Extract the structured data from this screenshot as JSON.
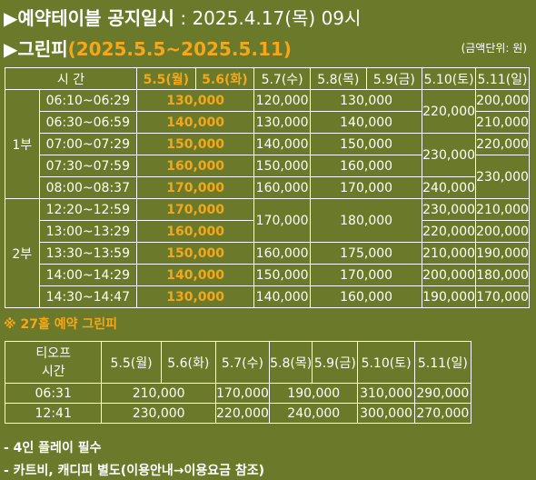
{
  "header": {
    "title_prefix": "▶",
    "title": "예약테이블 공지일시",
    "colon": ":",
    "datetime": "2025.4.17(목) 09시"
  },
  "subheader": {
    "prefix": "▶",
    "title": "그린피",
    "range": "(2025.5.5~2025.5.11)",
    "unit": "(금액단위: 원)"
  },
  "green_fee": {
    "time_header": "시 간",
    "days": [
      "5.5(월)",
      "5.6(화)",
      "5.7(수)",
      "5.8(목)",
      "5.9(금)",
      "5.10(토)",
      "5.11(일)"
    ],
    "part1": "1부",
    "part2": "2부",
    "times": [
      "06:10~06:29",
      "06:30~06:59",
      "07:00~07:29",
      "07:30~07:59",
      "08:00~08:37",
      "12:20~12:59",
      "13:00~13:29",
      "13:30~13:59",
      "14:00~14:29",
      "14:30~14:47"
    ],
    "holiday_prices": [
      [
        "130,000",
        "130,000"
      ],
      [
        "140,000",
        "140,000"
      ],
      [
        "150,000",
        "150,000"
      ],
      [
        "160,000",
        "160,000"
      ],
      [
        "170,000",
        "170,000"
      ],
      [
        "170,000",
        "170,000"
      ],
      [
        "160,000",
        "160,000"
      ],
      [
        "150,000",
        "150,000"
      ],
      [
        "140,000",
        "140,000"
      ],
      [
        "130,000",
        "130,000"
      ]
    ],
    "col57": [
      "120,000",
      "130,000",
      "140,000",
      "150,000",
      "160,000",
      "170,000",
      "160,000",
      "150,000",
      "140,000"
    ],
    "col5859": [
      "130,000",
      "140,000",
      "150,000",
      "160,000",
      "170,000",
      "180,000",
      "175,000",
      "170,000",
      "160,000"
    ],
    "col510": [
      "220,000",
      "230,000",
      "240,000",
      "230,000",
      "220,000",
      "210,000",
      "200,000",
      "190,000"
    ],
    "col511": [
      "200,000",
      "210,000",
      "220,000",
      "230,000",
      "210,000",
      "200,000",
      "190,000",
      "180,000",
      "170,000"
    ]
  },
  "hole27": {
    "note": "※ 27홀 예약 그린피",
    "header_line1": "티오프",
    "header_line2": "시간",
    "days": [
      "5.5(월)",
      "5.6(화)",
      "5.7(수)",
      "5.8(목)",
      "5.9(금)",
      "5.10(토)",
      "5.11(일)"
    ],
    "rows": [
      {
        "time": "06:31",
        "holiday": "210,000",
        "wed": "170,000",
        "thufri": "190,000",
        "sat": "310,000",
        "sun": "290,000"
      },
      {
        "time": "12:41",
        "holiday": "230,000",
        "wed": "220,000",
        "thufri": "240,000",
        "sat": "300,000",
        "sun": "270,000"
      }
    ]
  },
  "bullets": [
    "- 4인 플레이 필수",
    "- 카트비, 캐디피 별도(이용안내→이용요금 참조)"
  ],
  "colors": {
    "background": "#6b7a2a",
    "highlight": "#f5a71a",
    "text": "#ffffff"
  }
}
